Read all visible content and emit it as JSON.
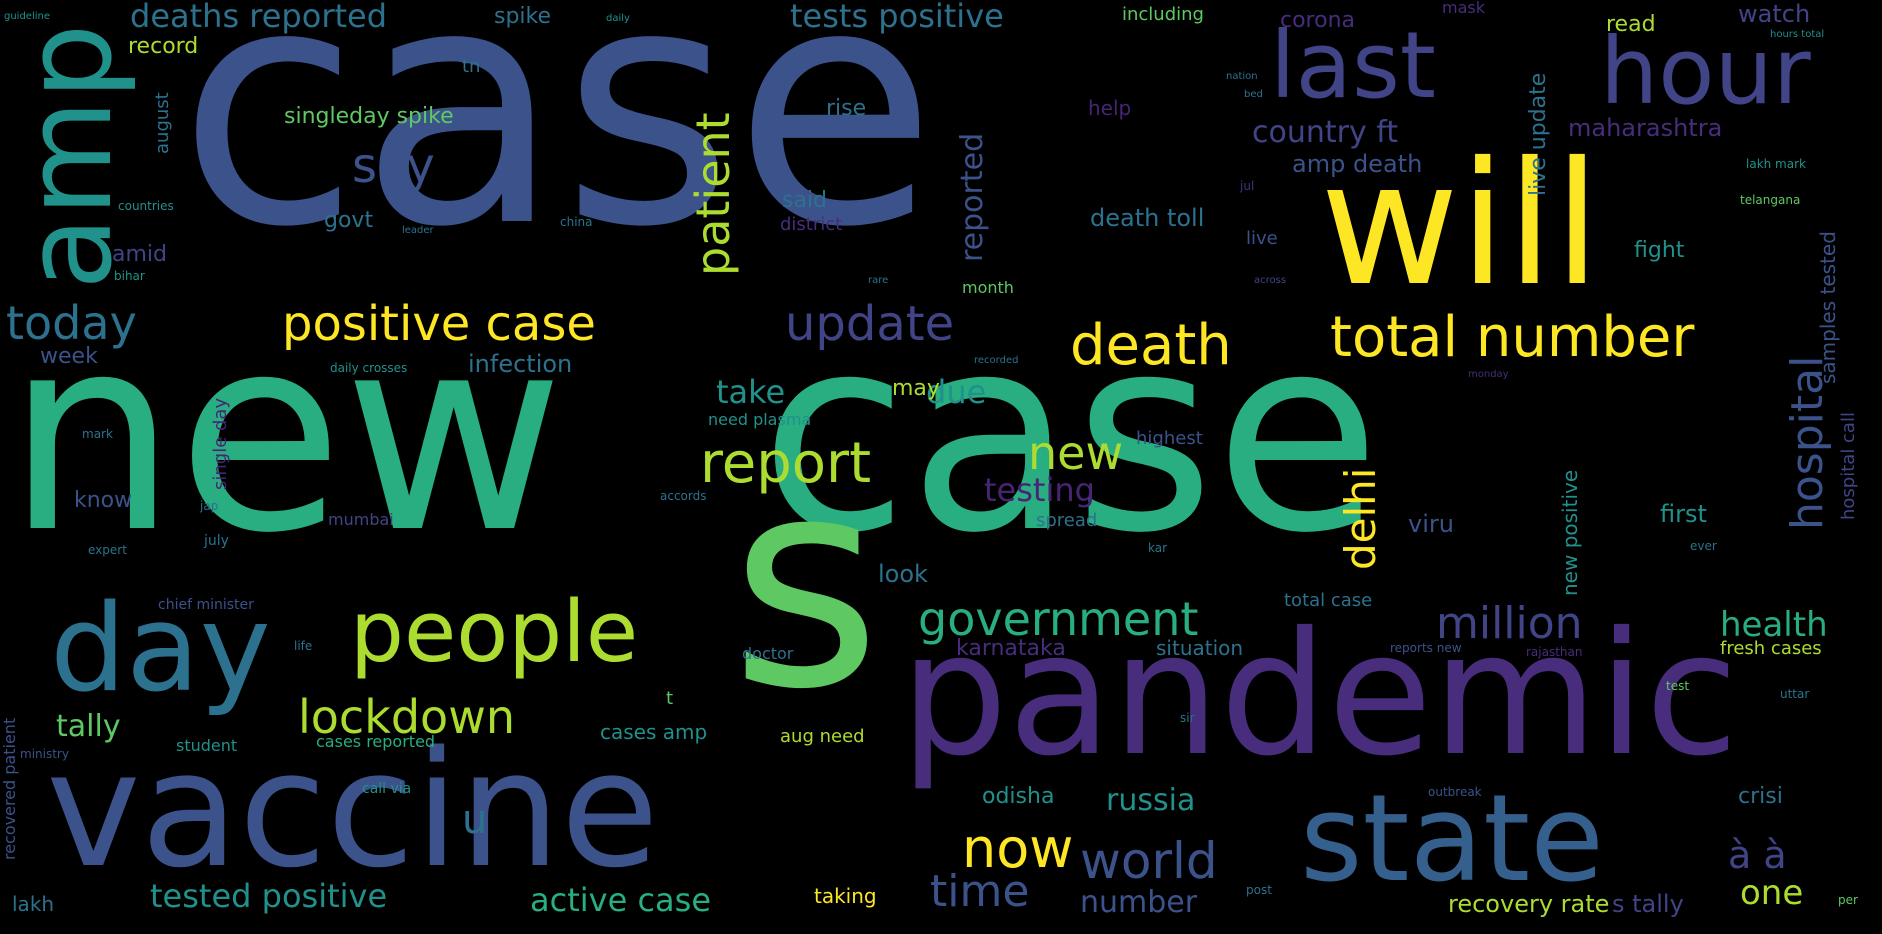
{
  "words": {
    "case_big": "case",
    "new_big": "new",
    "case_mid": "case",
    "s": "s",
    "pandemic": "pandemic",
    "vaccine": "vaccine",
    "will": "will",
    "state": "state",
    "amp": "amp",
    "day": "day",
    "people": "people",
    "last": "last",
    "hour": "hour",
    "positive_case": "positive case",
    "update": "update",
    "death": "death",
    "total_number": "total number",
    "today": "today",
    "lockdown": "lockdown",
    "report": "report",
    "government": "government",
    "million": "million",
    "patient": "patient",
    "delhi": "delhi",
    "hospital": "hospital",
    "now": "now",
    "world": "world",
    "time": "time",
    "new_small": "new",
    "say": "say",
    "deaths_reported": "deaths reported",
    "tests_positive": "tests positive",
    "tested_positive": "tested positive",
    "active_case": "active case",
    "russia": "russia",
    "health": "health",
    "number": "number",
    "one": "one",
    "tally": "tally",
    "take": "take",
    "due": "due",
    "testing": "testing",
    "record": "record",
    "singleday_spike": "singleday spike",
    "country_ft": "country ft",
    "amp_death": "amp death",
    "death_toll": "death toll",
    "maharashtra": "maharashtra",
    "reported": "reported",
    "fight": "fight",
    "infection": "infection",
    "week": "week",
    "amid": "amid",
    "govt": "govt",
    "said": "said",
    "district": "district",
    "rise": "rise",
    "help": "help",
    "corona": "corona",
    "read": "read",
    "watch": "watch",
    "mask": "mask",
    "spike": "spike",
    "including": "including",
    "live_update": "live update",
    "samples_tested": "samples tested",
    "hospital_call": "hospital call",
    "new_positive": "new positive",
    "karnataka": "karnataka",
    "situation": "situation",
    "fresh_cases": "fresh cases",
    "odisha": "odisha",
    "crisi": "crisi",
    "recovery_rate": "recovery rate",
    "s_tally": "s tally",
    "taking": "taking",
    "lakh": "lakh",
    "cases_amp": "cases amp",
    "aug_need": "aug need",
    "cases_reported": "cases reported",
    "need_plasma": "need plasma",
    "highest": "highest",
    "spread": "spread",
    "viru": "viru",
    "first": "first",
    "total_case": "total case",
    "look": "look",
    "know": "know",
    "mumbai": "mumbai",
    "single_day": "single day",
    "may": "may",
    "month": "month",
    "doctor": "doctor",
    "august": "august",
    "guideline": "guideline",
    "daily": "daily",
    "tn": "tn",
    "live": "live",
    "across": "across",
    "telangana": "telangana",
    "lakh_mark": "lakh mark",
    "hours_total": "hours total",
    "bihar": "bihar",
    "countries": "countries",
    "china": "china",
    "leader": "leader",
    "jul": "jul",
    "recorded": "recorded",
    "daily_crosses": "daily crosses",
    "monday": "monday",
    "expert": "expert",
    "july": "july",
    "chief_minister": "chief minister",
    "student": "student",
    "recovered_patient": "recovered patient",
    "ministry": "ministry",
    "call_via": "call via",
    "reports_new": "reports new",
    "rajasthan": "rajasthan",
    "outbreak": "outbreak",
    "sir": "sir",
    "post": "post",
    "accords": "accords",
    "u": "u",
    "t": "t",
    "a_a": "à à",
    "jap": "jap",
    "mark": "mark",
    "life": "life",
    "uttar": "uttar",
    "test": "test",
    "kar": "kar",
    "rare": "rare",
    "bed": "bed",
    "per": "per",
    "ever": "ever",
    "nation": "nation"
  },
  "colors": {
    "background": "#000000",
    "palette": [
      "#414487",
      "#3b528b",
      "#2c728e",
      "#21918c",
      "#28ae80",
      "#5ec962",
      "#addc30",
      "#fde725",
      "#472d7b"
    ]
  }
}
